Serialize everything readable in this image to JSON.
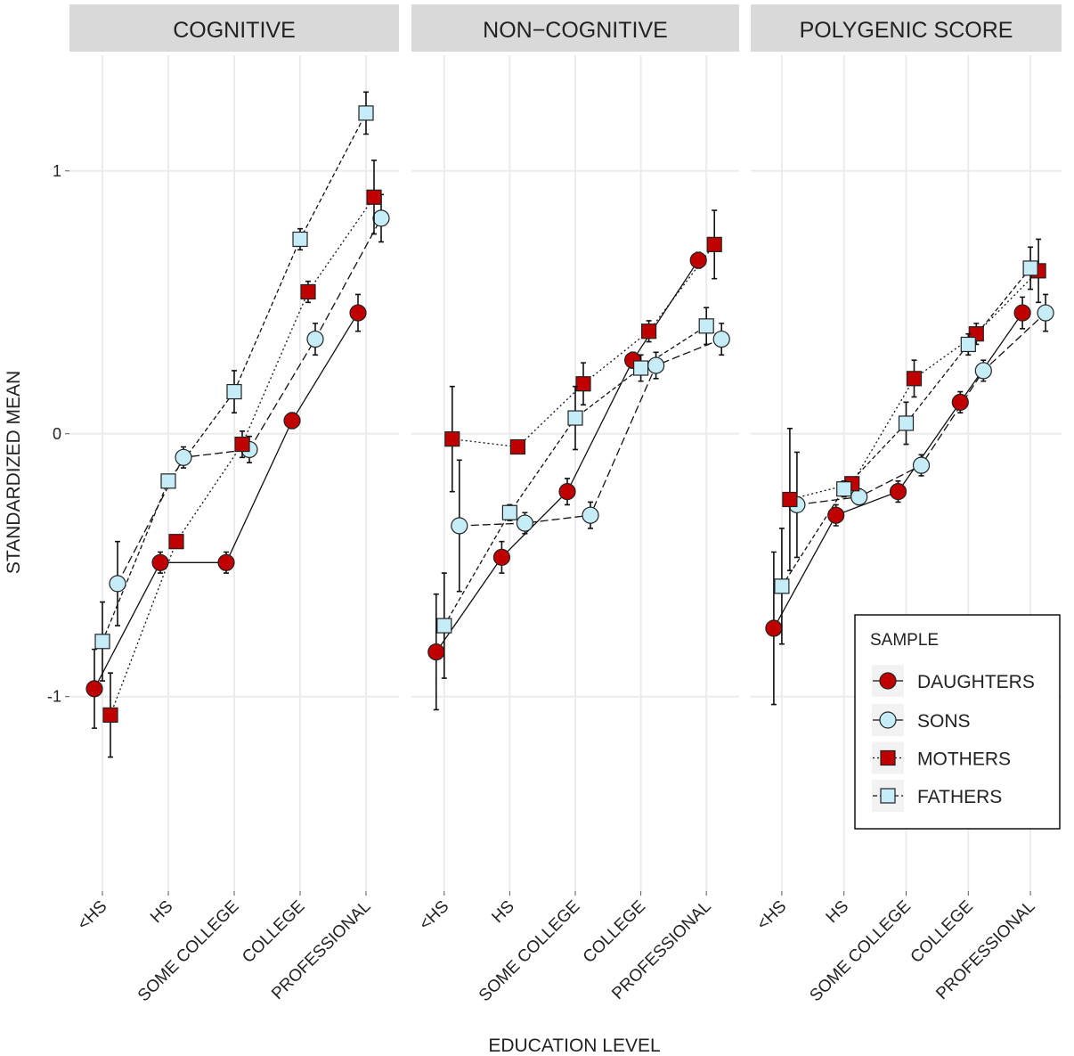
{
  "axis_titles": {
    "x": "EDUCATION LEVEL",
    "y": "STANDARDIZED MEAN"
  },
  "chart_data": [
    {
      "type": "line",
      "title": "COGNITIVE",
      "categories": [
        "<HS",
        "HS",
        "SOME COLLEGE",
        "COLLEGE",
        "PROFESSIONAL"
      ],
      "ylim": [
        -1.74,
        1.44
      ],
      "yticks": [
        -1,
        0,
        1
      ],
      "grid": true,
      "series": [
        {
          "name": "DAUGHTERS",
          "color": "#c00000",
          "marker": "circle",
          "line_style": "solid",
          "values": [
            -0.97,
            -0.49,
            -0.49,
            0.05,
            0.46
          ],
          "errors": [
            0.15,
            0.04,
            0.04,
            0.03,
            0.07
          ]
        },
        {
          "name": "SONS",
          "color": "#c6ecf7",
          "marker": "circle",
          "line_style": "longdash",
          "values": [
            -0.57,
            -0.09,
            -0.06,
            0.36,
            0.82
          ],
          "errors": [
            0.16,
            0.04,
            0.05,
            0.06,
            0.09
          ]
        },
        {
          "name": "MOTHERS",
          "color": "#c00000",
          "marker": "square",
          "line_style": "dotted",
          "values": [
            -1.07,
            -0.41,
            -0.04,
            0.54,
            0.9
          ],
          "errors": [
            0.16,
            0.02,
            0.05,
            0.04,
            0.14
          ]
        },
        {
          "name": "FATHERS",
          "color": "#c6ecf7",
          "marker": "square",
          "line_style": "dashed",
          "values": [
            -0.79,
            -0.18,
            0.16,
            0.74,
            1.22
          ],
          "errors": [
            0.15,
            0.02,
            0.08,
            0.04,
            0.08
          ]
        }
      ]
    },
    {
      "type": "line",
      "title": "NON−COGNITIVE",
      "categories": [
        "<HS",
        "HS",
        "SOME COLLEGE",
        "COLLEGE",
        "PROFESSIONAL"
      ],
      "ylim": [
        -1.74,
        1.44
      ],
      "yticks": [
        -1,
        0,
        1
      ],
      "grid": true,
      "series": [
        {
          "name": "DAUGHTERS",
          "color": "#c00000",
          "marker": "circle",
          "line_style": "solid",
          "values": [
            -0.83,
            -0.47,
            -0.22,
            0.28,
            0.66
          ],
          "errors": [
            0.22,
            0.06,
            0.05,
            0.03,
            0.03
          ]
        },
        {
          "name": "SONS",
          "color": "#c6ecf7",
          "marker": "circle",
          "line_style": "longdash",
          "values": [
            -0.35,
            -0.34,
            -0.31,
            0.26,
            0.36
          ],
          "errors": [
            0.25,
            0.04,
            0.05,
            0.05,
            0.06
          ]
        },
        {
          "name": "MOTHERS",
          "color": "#c00000",
          "marker": "square",
          "line_style": "dotted",
          "values": [
            -0.02,
            -0.05,
            0.19,
            0.39,
            0.72
          ],
          "errors": [
            0.2,
            0.02,
            0.08,
            0.04,
            0.13
          ]
        },
        {
          "name": "FATHERS",
          "color": "#c6ecf7",
          "marker": "square",
          "line_style": "dashed",
          "values": [
            -0.73,
            -0.3,
            0.06,
            0.25,
            0.41
          ],
          "errors": [
            0.2,
            0.03,
            0.12,
            0.05,
            0.07
          ]
        }
      ]
    },
    {
      "type": "line",
      "title": "POLYGENIC SCORE",
      "categories": [
        "<HS",
        "HS",
        "SOME COLLEGE",
        "COLLEGE",
        "PROFESSIONAL"
      ],
      "ylim": [
        -1.74,
        1.44
      ],
      "yticks": [
        -1,
        0,
        1
      ],
      "grid": true,
      "legend": "bottom-right",
      "legend_title": "SAMPLE",
      "series": [
        {
          "name": "DAUGHTERS",
          "color": "#c00000",
          "marker": "circle",
          "line_style": "solid",
          "values": [
            -0.74,
            -0.31,
            -0.22,
            0.12,
            0.46
          ],
          "errors": [
            0.29,
            0.04,
            0.04,
            0.04,
            0.06
          ]
        },
        {
          "name": "SONS",
          "color": "#c6ecf7",
          "marker": "circle",
          "line_style": "longdash",
          "values": [
            -0.27,
            -0.24,
            -0.12,
            0.24,
            0.46
          ],
          "errors": [
            0.2,
            0.03,
            0.04,
            0.04,
            0.07
          ]
        },
        {
          "name": "MOTHERS",
          "color": "#c00000",
          "marker": "square",
          "line_style": "dotted",
          "values": [
            -0.25,
            -0.19,
            0.21,
            0.38,
            0.62
          ],
          "errors": [
            0.27,
            0.02,
            0.07,
            0.04,
            0.12
          ]
        },
        {
          "name": "FATHERS",
          "color": "#c6ecf7",
          "marker": "square",
          "line_style": "dashed",
          "values": [
            -0.58,
            -0.21,
            0.04,
            0.34,
            0.63
          ],
          "errors": [
            0.22,
            0.03,
            0.08,
            0.04,
            0.08
          ]
        }
      ]
    }
  ]
}
